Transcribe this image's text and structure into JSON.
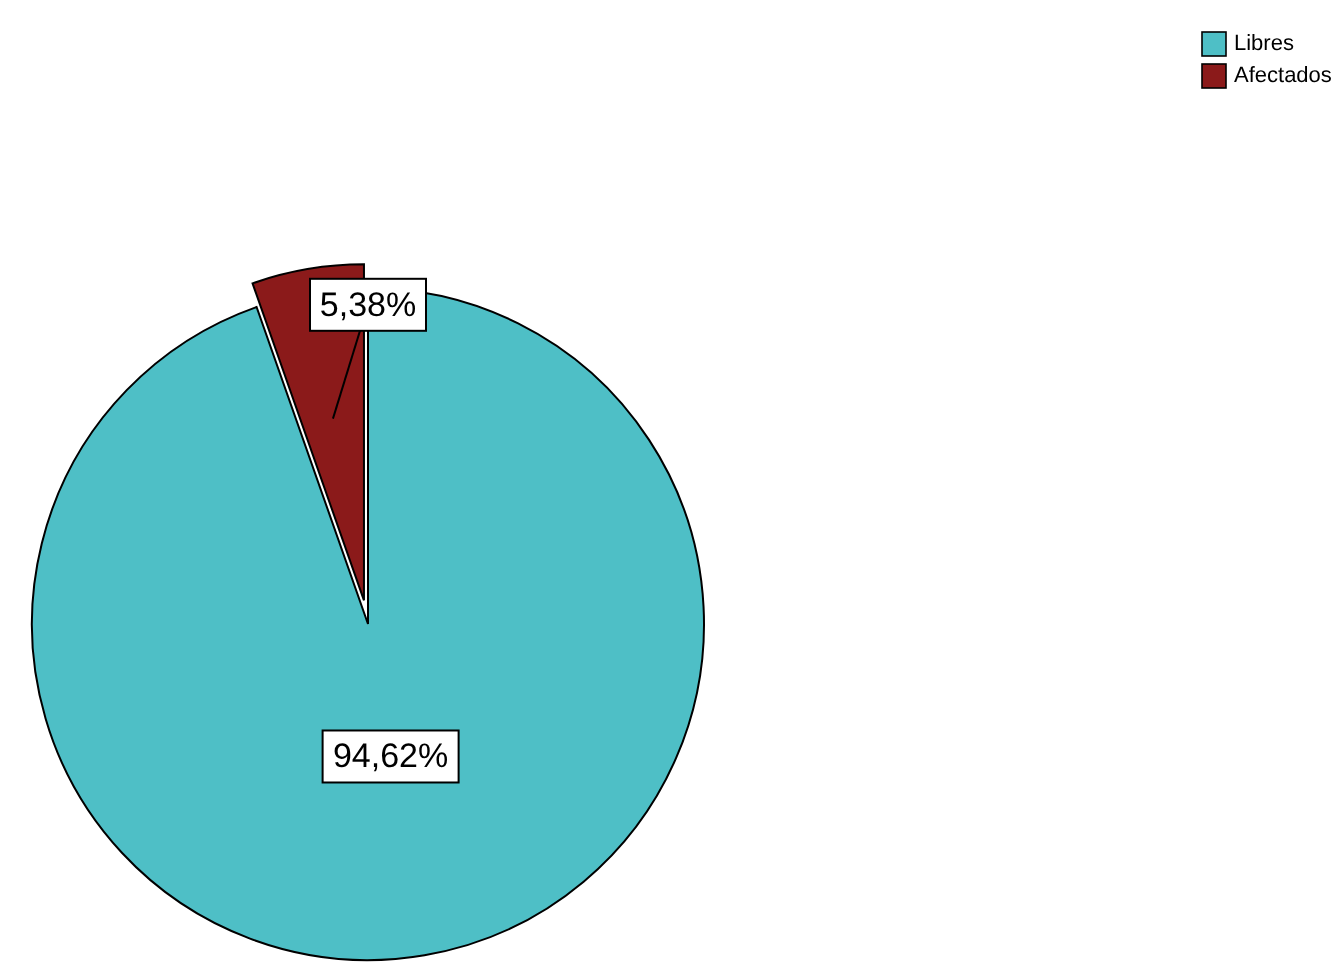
{
  "chart_data": {
    "type": "pie",
    "categories": [
      "Libres",
      "Afectados"
    ],
    "values": [
      94.62,
      5.38
    ],
    "colors": [
      "#4ebfc6",
      "#8b1a1a"
    ],
    "value_labels": [
      "94,62%",
      "5,38%"
    ],
    "legend": "top right"
  }
}
